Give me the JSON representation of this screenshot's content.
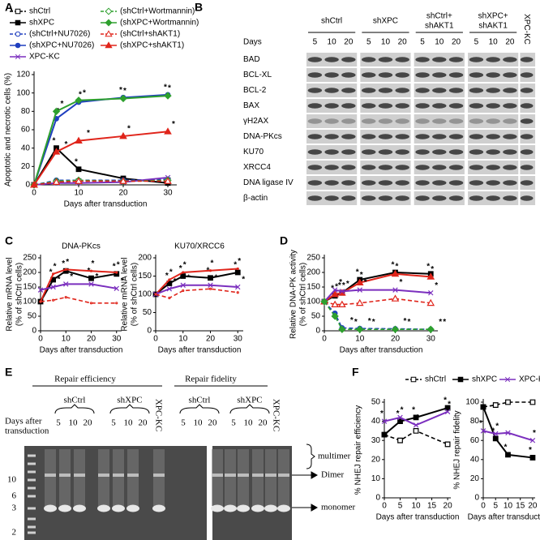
{
  "panel_labels": [
    "A",
    "B",
    "C",
    "D",
    "E",
    "F"
  ],
  "chart_data": [
    {
      "type": "line",
      "xlabel": "Days after transduction",
      "ylabel": [
        "Apoptotic and necrotic cells (%)"
      ],
      "x": [
        0,
        5,
        10,
        20,
        30
      ],
      "xlim": [
        0,
        32
      ],
      "ylim": [
        0,
        120
      ],
      "xticks": [
        0,
        10,
        20,
        30
      ],
      "yticks": [
        0,
        20,
        40,
        60,
        80,
        100,
        120
      ],
      "legend": true,
      "legend_columns": 2,
      "star": "*",
      "series": [
        {
          "name": "shCtrl",
          "color": "#000000",
          "dashed": true,
          "marker": "square",
          "filled": false,
          "values": [
            0,
            3,
            4,
            5,
            5
          ]
        },
        {
          "name": "shXPC",
          "color": "#000000",
          "dashed": false,
          "marker": "square",
          "filled": true,
          "values": [
            0,
            40,
            17,
            7,
            2
          ],
          "stars": [
            5,
            10
          ]
        },
        {
          "name": "(shCtrl+NU7026)",
          "color": "#1f3fbf",
          "dashed": true,
          "marker": "circle",
          "filled": false,
          "values": [
            0,
            5,
            5,
            5,
            6
          ]
        },
        {
          "name": "(shXPC+NU7026)",
          "color": "#1f3fbf",
          "dashed": false,
          "marker": "circle",
          "filled": true,
          "values": [
            0,
            72,
            90,
            95,
            98
          ],
          "stars": [
            5,
            10,
            20,
            30
          ]
        },
        {
          "name": "XPC-KC",
          "color": "#7b2fbe",
          "dashed": false,
          "marker": "x",
          "filled": false,
          "values": [
            0,
            2,
            2,
            3,
            8
          ]
        },
        {
          "name": "(shCtrl+Wortmannin)",
          "color": "#2ea02e",
          "dashed": true,
          "marker": "diamond",
          "filled": false,
          "values": [
            0,
            4,
            5,
            4,
            5
          ]
        },
        {
          "name": "(shXPC+Wortmannin)",
          "color": "#2ea02e",
          "dashed": false,
          "marker": "diamond",
          "filled": true,
          "values": [
            0,
            80,
            92,
            94,
            97
          ],
          "stars": [
            5,
            10,
            20,
            30
          ]
        },
        {
          "name": "(shCtrl+shAKT1)",
          "color": "#e0251b",
          "dashed": true,
          "marker": "triangle",
          "filled": false,
          "values": [
            0,
            3,
            4,
            4,
            4
          ]
        },
        {
          "name": "(shXPC+shAKT1)",
          "color": "#e0251b",
          "dashed": false,
          "marker": "triangle",
          "filled": true,
          "values": [
            0,
            36,
            48,
            53,
            58
          ],
          "stars": [
            5,
            10,
            20,
            30
          ]
        }
      ]
    },
    {
      "type": "line",
      "title": "DNA-PKcs",
      "xlabel": "Days after transduction",
      "ylabel": [
        "Relative mRNA level",
        "(% of shCtrl cells)"
      ],
      "x": [
        0,
        5,
        10,
        20,
        30
      ],
      "xlim": [
        0,
        32
      ],
      "ylim": [
        0,
        250
      ],
      "xticks": [
        0,
        10,
        20,
        30
      ],
      "yticks": [
        0,
        50,
        100,
        150,
        200,
        250
      ],
      "legend": false,
      "star": "*",
      "series": [
        {
          "name": "shXPC",
          "color": "#000000",
          "dashed": false,
          "marker": "square",
          "filled": true,
          "values": [
            100,
            175,
            205,
            180,
            195
          ],
          "stars": [
            5,
            10,
            20,
            30
          ]
        },
        {
          "name": "(shXPC+shAKT1)",
          "color": "#e0251b",
          "dashed": false,
          "marker": "none",
          "filled": true,
          "values": [
            100,
            195,
            210,
            205,
            200
          ],
          "stars": [
            5,
            10,
            20,
            30
          ]
        },
        {
          "name": "XPC-KC",
          "color": "#7b2fbe",
          "dashed": false,
          "marker": "x",
          "filled": false,
          "values": [
            140,
            150,
            160,
            160,
            145
          ],
          "stars": [
            5,
            10,
            20,
            30
          ]
        },
        {
          "name": "(shCtrl+shAKT1)",
          "color": "#e0251b",
          "dashed": true,
          "marker": "none",
          "filled": false,
          "values": [
            100,
            105,
            115,
            95,
            95
          ]
        }
      ]
    },
    {
      "type": "line",
      "title": "KU70/XRCC6",
      "xlabel": "Days after transduction",
      "ylabel": [
        "Relative mRNA level",
        "(% of shCtrl cells)"
      ],
      "x": [
        0,
        5,
        10,
        20,
        30
      ],
      "xlim": [
        0,
        32
      ],
      "ylim": [
        0,
        200
      ],
      "xticks": [
        0,
        10,
        20,
        30
      ],
      "yticks": [
        0,
        50,
        100,
        150,
        200
      ],
      "legend": false,
      "star": "*",
      "series": [
        {
          "name": "shXPC",
          "color": "#000000",
          "dashed": false,
          "marker": "square",
          "filled": true,
          "values": [
            100,
            130,
            150,
            145,
            160
          ],
          "stars": [
            5,
            10,
            20,
            30
          ]
        },
        {
          "name": "(shXPC+shAKT1)",
          "color": "#e0251b",
          "dashed": false,
          "marker": "none",
          "filled": true,
          "values": [
            100,
            140,
            160,
            165,
            170
          ],
          "stars": [
            5,
            10,
            20,
            30
          ]
        },
        {
          "name": "XPC-KC",
          "color": "#7b2fbe",
          "dashed": false,
          "marker": "x",
          "filled": false,
          "values": [
            100,
            115,
            125,
            125,
            120
          ],
          "stars": [
            5,
            10,
            20,
            30
          ]
        },
        {
          "name": "(shCtrl+shAKT1)",
          "color": "#e0251b",
          "dashed": true,
          "marker": "none",
          "filled": false,
          "values": [
            100,
            90,
            110,
            115,
            105
          ]
        }
      ]
    },
    {
      "type": "line",
      "xlabel": "Days after transduction",
      "ylabel": [
        "Relative DNA-PK activity",
        "(% of shCtrl cells)"
      ],
      "x": [
        0,
        3,
        5,
        10,
        20,
        30
      ],
      "xlim": [
        0,
        32
      ],
      "ylim": [
        0,
        250
      ],
      "xticks": [
        0,
        10,
        20,
        30
      ],
      "yticks": [
        0,
        50,
        100,
        150,
        200,
        250
      ],
      "legend": false,
      "star": "*",
      "series": [
        {
          "name": "shXPC",
          "color": "#000000",
          "dashed": false,
          "marker": "square",
          "filled": true,
          "values": [
            100,
            120,
            130,
            175,
            200,
            195
          ],
          "stars": [
            3,
            5,
            10,
            20,
            30
          ]
        },
        {
          "name": "(shXPC+shAKT1)",
          "color": "#e0251b",
          "dashed": false,
          "marker": "triangle",
          "filled": true,
          "values": [
            100,
            125,
            130,
            165,
            195,
            185
          ],
          "stars": [
            3,
            5,
            10,
            20,
            30
          ]
        },
        {
          "name": "XPC-KC",
          "color": "#7b2fbe",
          "dashed": false,
          "marker": "x",
          "filled": false,
          "values": [
            100,
            140,
            135,
            140,
            140,
            130
          ],
          "stars": [
            3,
            5,
            10,
            20,
            30
          ]
        },
        {
          "name": "(shCtrl+shAKT1)",
          "color": "#e0251b",
          "dashed": true,
          "marker": "triangle",
          "filled": false,
          "values": [
            100,
            90,
            90,
            95,
            110,
            95
          ]
        },
        {
          "name": "(shXPC+NU7026)",
          "color": "#1f3fbf",
          "dashed": true,
          "marker": "circle",
          "filled": true,
          "values": [
            100,
            60,
            10,
            8,
            7,
            5
          ],
          "stars": [
            5,
            10,
            20,
            30
          ]
        },
        {
          "name": "(shXPC+Wortmannin)",
          "color": "#2ea02e",
          "dashed": true,
          "marker": "diamond",
          "filled": true,
          "values": [
            100,
            50,
            5,
            5,
            5,
            5
          ],
          "stars": [
            5,
            10,
            20,
            30
          ]
        }
      ]
    },
    {
      "type": "line",
      "xlabel": "Days after transduction",
      "ylabel": [
        "% NHEJ repair efficiency"
      ],
      "x": [
        0,
        5,
        10,
        20
      ],
      "xlim": [
        0,
        21
      ],
      "ylim": [
        0,
        50
      ],
      "xticks": [
        0,
        5,
        10,
        15,
        20
      ],
      "yticks": [
        0,
        10,
        20,
        30,
        40,
        50
      ],
      "legend": true,
      "legend_columns": 3,
      "star": "*",
      "series": [
        {
          "name": "shCtrl",
          "color": "#000000",
          "dashed": true,
          "marker": "square",
          "filled": false,
          "values": [
            33,
            30,
            35,
            28
          ]
        },
        {
          "name": "shXPC",
          "color": "#000000",
          "dashed": false,
          "marker": "square",
          "filled": true,
          "values": [
            33,
            40,
            42,
            47
          ],
          "stars": [
            5,
            10,
            20
          ]
        },
        {
          "name": "XPC-KC",
          "color": "#7b2fbe",
          "dashed": false,
          "marker": "x",
          "filled": false,
          "values": [
            40,
            42,
            38,
            45
          ],
          "stars": [
            0,
            5,
            10,
            20
          ]
        }
      ]
    },
    {
      "type": "line",
      "xlabel": "Days after transduction",
      "ylabel": [
        "% NHEJ repair fidelity"
      ],
      "x": [
        0,
        5,
        10,
        20
      ],
      "xlim": [
        0,
        21
      ],
      "ylim": [
        0,
        100
      ],
      "xticks": [
        0,
        5,
        10,
        15,
        20
      ],
      "yticks": [
        0,
        20,
        40,
        60,
        80,
        100
      ],
      "legend": false,
      "star": "*",
      "series": [
        {
          "name": "shCtrl",
          "color": "#000000",
          "dashed": true,
          "marker": "square",
          "filled": false,
          "values": [
            95,
            97,
            100,
            100
          ]
        },
        {
          "name": "shXPC",
          "color": "#000000",
          "dashed": false,
          "marker": "square",
          "filled": true,
          "values": [
            95,
            62,
            45,
            42
          ],
          "stars": [
            5,
            10,
            20
          ]
        },
        {
          "name": "XPC-KC",
          "color": "#7b2fbe",
          "dashed": false,
          "marker": "x",
          "filled": false,
          "values": [
            70,
            67,
            68,
            60
          ],
          "stars": [
            0,
            5,
            20
          ]
        }
      ]
    }
  ],
  "blot": {
    "days_label": "Days",
    "groups": [
      {
        "label": [
          "shCtrl"
        ],
        "days": [
          5,
          10,
          20
        ]
      },
      {
        "label": [
          "shXPC"
        ],
        "days": [
          5,
          10,
          20
        ]
      },
      {
        "label": [
          "shCtrl+",
          "shAKT1"
        ],
        "days": [
          5,
          10,
          20
        ]
      },
      {
        "label": [
          "shXPC+",
          "shAKT1"
        ],
        "days": [
          5,
          10,
          20
        ]
      }
    ],
    "control": "XPC-KC",
    "rows": [
      "BAD",
      "BCL-XL",
      "BCL-2",
      "BAX",
      "γH2AX",
      "DNA-PKcs",
      "KU70",
      "XRCC4",
      "DNA ligase IV",
      "β-actin"
    ]
  },
  "gel": {
    "sections": [
      {
        "title": "Repair efficiency",
        "groups": [
          "shCtrl",
          "shXPC"
        ],
        "control": "XPC-KC"
      },
      {
        "title": "Repair fidelity",
        "groups": [
          "shCtrl",
          "shXPC"
        ],
        "control": "XPC-KC"
      }
    ],
    "days_label": [
      "Days after",
      "transduction"
    ],
    "days": [
      5,
      10,
      20
    ],
    "ladder": [
      10,
      6,
      3,
      2
    ],
    "band_labels": [
      "multimer",
      "Dimer",
      "monomer"
    ]
  }
}
